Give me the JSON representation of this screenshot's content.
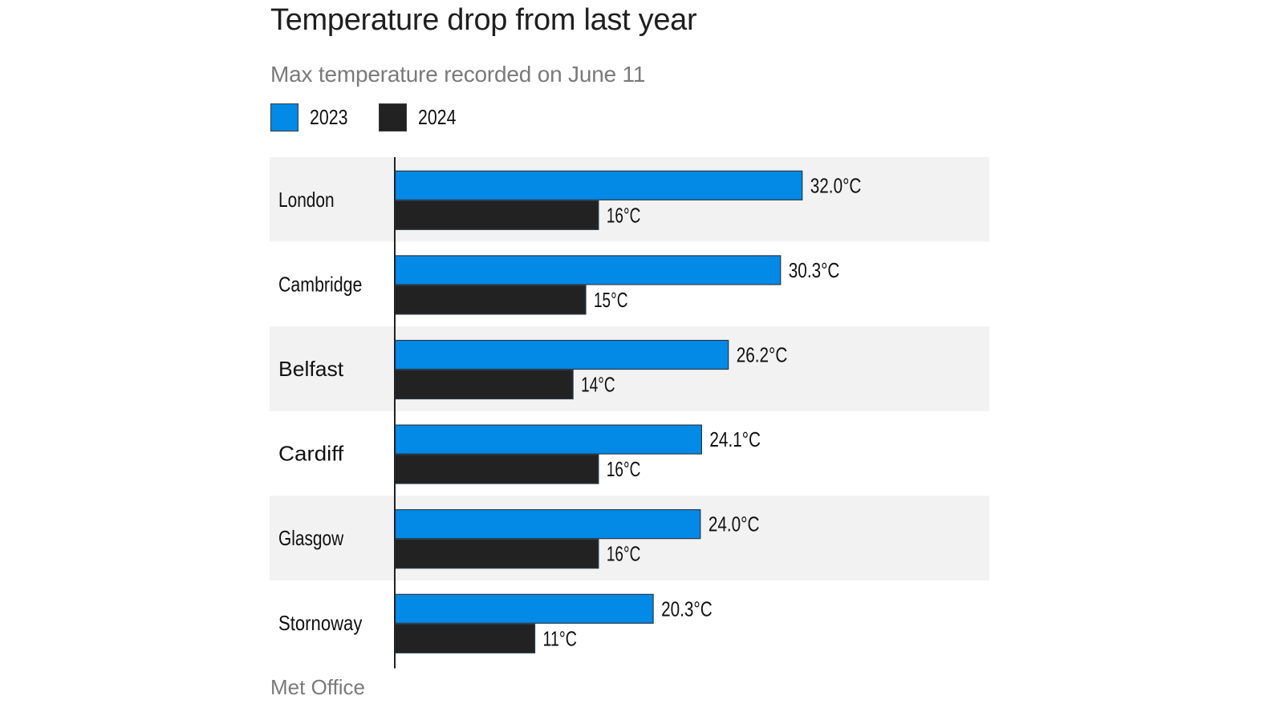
{
  "title": "Temperature drop from last year",
  "subtitle": "Max temperature recorded on June 11",
  "source": "Met Office",
  "legend": [
    {
      "label": "2023",
      "color": "#0389e6"
    },
    {
      "label": "2024",
      "color": "#222222"
    }
  ],
  "colors": {
    "series_2023": "#0389e6",
    "series_2024": "#222222",
    "band": "#f2f2f2",
    "axis": "#222222"
  },
  "chart_data": {
    "type": "bar",
    "orientation": "horizontal",
    "title": "Temperature drop from last year",
    "subtitle": "Max temperature recorded on June 11",
    "xlabel": "",
    "ylabel": "",
    "unit": "°C",
    "categories": [
      "London",
      "Cambridge",
      "Belfast",
      "Cardiff",
      "Glasgow",
      "Stornoway"
    ],
    "series": [
      {
        "name": "2023",
        "values": [
          32.0,
          30.3,
          26.2,
          24.1,
          24.0,
          20.3
        ],
        "labels": [
          "32.0°C",
          "30.3°C",
          "26.2°C",
          "24.1°C",
          "24.0°C",
          "20.3°C"
        ]
      },
      {
        "name": "2024",
        "values": [
          16,
          15,
          14,
          16,
          16,
          11
        ],
        "labels": [
          "16°C",
          "15°C",
          "14°C",
          "16°C",
          "16°C",
          "11°C"
        ]
      }
    ],
    "xlim": [
      0,
      46.7
    ],
    "grid": false,
    "legend_position": "top-left",
    "source": "Met Office"
  }
}
